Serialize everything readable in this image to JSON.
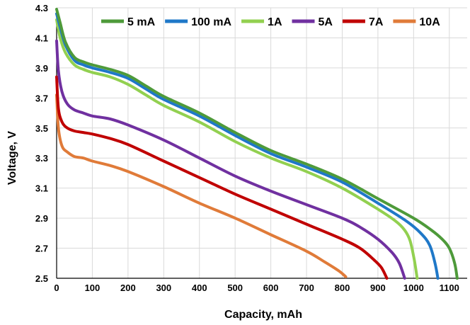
{
  "chart_data": {
    "type": "line",
    "xlabel": "Capacity, mAh",
    "ylabel": "Voltage, V",
    "xlim": [
      0,
      1150
    ],
    "ylim": [
      2.5,
      4.3
    ],
    "x_ticks": [
      0,
      100,
      200,
      300,
      400,
      500,
      600,
      700,
      800,
      900,
      1000,
      1100
    ],
    "y_ticks": [
      2.5,
      2.7,
      2.9,
      3.1,
      3.3,
      3.5,
      3.7,
      3.9,
      4.1,
      4.3
    ],
    "grid": true,
    "legend_position": "top",
    "series": [
      {
        "name": "5 mA",
        "color": "#4e9a3a",
        "x": [
          0,
          10,
          25,
          50,
          75,
          100,
          150,
          200,
          250,
          300,
          400,
          500,
          600,
          700,
          800,
          900,
          1000,
          1050,
          1080,
          1100,
          1115,
          1122
        ],
        "y": [
          4.29,
          4.2,
          4.07,
          3.97,
          3.94,
          3.92,
          3.89,
          3.85,
          3.78,
          3.71,
          3.6,
          3.47,
          3.35,
          3.26,
          3.16,
          3.03,
          2.9,
          2.82,
          2.76,
          2.7,
          2.6,
          2.5
        ]
      },
      {
        "name": "100 mA",
        "color": "#1f78c8",
        "x": [
          0,
          10,
          25,
          50,
          75,
          100,
          150,
          200,
          250,
          300,
          400,
          500,
          600,
          700,
          800,
          900,
          980,
          1020,
          1045,
          1060,
          1068
        ],
        "y": [
          4.26,
          4.17,
          4.05,
          3.95,
          3.92,
          3.9,
          3.87,
          3.83,
          3.76,
          3.69,
          3.58,
          3.45,
          3.33,
          3.24,
          3.14,
          3.0,
          2.88,
          2.8,
          2.72,
          2.6,
          2.5
        ]
      },
      {
        "name": "1A",
        "color": "#92d050",
        "x": [
          0,
          10,
          25,
          50,
          75,
          100,
          150,
          200,
          250,
          300,
          400,
          500,
          600,
          700,
          800,
          900,
          950,
          975,
          990,
          1002,
          1010
        ],
        "y": [
          4.22,
          4.1,
          4.0,
          3.92,
          3.89,
          3.87,
          3.84,
          3.79,
          3.72,
          3.65,
          3.54,
          3.41,
          3.3,
          3.21,
          3.1,
          2.96,
          2.88,
          2.82,
          2.75,
          2.62,
          2.5
        ]
      },
      {
        "name": "5A",
        "color": "#7030a0",
        "x": [
          0,
          5,
          15,
          30,
          50,
          75,
          100,
          150,
          200,
          300,
          400,
          500,
          600,
          700,
          800,
          850,
          900,
          940,
          960,
          975
        ],
        "y": [
          4.08,
          3.88,
          3.74,
          3.66,
          3.62,
          3.6,
          3.58,
          3.56,
          3.52,
          3.42,
          3.3,
          3.18,
          3.08,
          2.99,
          2.9,
          2.84,
          2.76,
          2.67,
          2.6,
          2.5
        ]
      },
      {
        "name": "7A",
        "color": "#c00000",
        "x": [
          0,
          5,
          15,
          30,
          50,
          75,
          100,
          150,
          200,
          300,
          400,
          500,
          600,
          700,
          800,
          850,
          890,
          910,
          925
        ],
        "y": [
          3.84,
          3.63,
          3.54,
          3.5,
          3.48,
          3.47,
          3.46,
          3.43,
          3.39,
          3.28,
          3.17,
          3.06,
          2.96,
          2.86,
          2.76,
          2.7,
          2.62,
          2.57,
          2.5
        ]
      },
      {
        "name": "10A",
        "color": "#e07b39",
        "x": [
          0,
          5,
          15,
          30,
          50,
          75,
          100,
          150,
          200,
          300,
          400,
          500,
          600,
          700,
          750,
          790,
          810
        ],
        "y": [
          3.72,
          3.5,
          3.38,
          3.34,
          3.31,
          3.3,
          3.28,
          3.25,
          3.21,
          3.11,
          3.0,
          2.9,
          2.79,
          2.68,
          2.61,
          2.55,
          2.51
        ]
      }
    ]
  }
}
